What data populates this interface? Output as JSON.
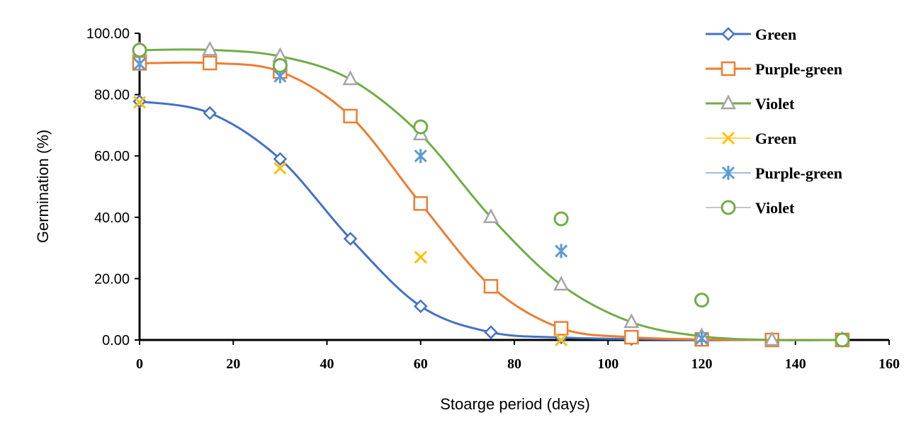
{
  "chart_data": {
    "type": "scatter",
    "xlabel": "Stoarge period (days)",
    "ylabel": "Germination (%)",
    "xlim": [
      0,
      160
    ],
    "ylim": [
      0,
      100
    ],
    "x_ticks": [
      0,
      20,
      40,
      60,
      80,
      100,
      120,
      140,
      160
    ],
    "y_ticks": [
      0,
      20,
      40,
      60,
      80,
      100
    ],
    "y_tick_labels": [
      "0.00",
      "20.00",
      "40.00",
      "60.00",
      "80.00",
      "100.00"
    ],
    "grid": false,
    "legend_position": "right",
    "series": [
      {
        "name": "Green",
        "kind": "line",
        "marker": "diamond",
        "color": "#4472C4",
        "x": [
          0,
          15,
          30,
          45,
          60,
          75,
          90,
          105,
          120,
          135,
          150
        ],
        "y": [
          77.8,
          74.0,
          59.0,
          33.0,
          11.0,
          2.5,
          0.8,
          0.3,
          0.1,
          0.0,
          0.0
        ]
      },
      {
        "name": "Purple-green",
        "kind": "line",
        "marker": "square",
        "color": "#ED7D31",
        "x": [
          0,
          15,
          30,
          45,
          60,
          75,
          90,
          105,
          120,
          135,
          150
        ],
        "y": [
          90.2,
          90.3,
          87.5,
          73.0,
          44.5,
          17.5,
          3.8,
          0.9,
          0.2,
          0.0,
          0.0
        ]
      },
      {
        "name": "Violet",
        "kind": "line",
        "marker": "triangle",
        "color": "#70AD47",
        "marker_color": "#A5A5A5",
        "x": [
          0,
          15,
          30,
          45,
          60,
          75,
          90,
          105,
          120,
          135,
          150
        ],
        "y": [
          94.5,
          94.6,
          92.5,
          85.0,
          67.0,
          40.0,
          18.0,
          5.8,
          1.2,
          0.0,
          0.0
        ]
      },
      {
        "name": "Green",
        "kind": "points",
        "marker": "x",
        "color": "#FFC000",
        "x": [
          0,
          30,
          60,
          90
        ],
        "y": [
          77.5,
          56.0,
          27.0,
          0.0
        ]
      },
      {
        "name": "Purple-green",
        "kind": "points",
        "marker": "asterisk",
        "color": "#5B9BD5",
        "x": [
          0,
          30,
          60,
          90,
          120
        ],
        "y": [
          90.0,
          86.0,
          60.0,
          29.0,
          0.5
        ]
      },
      {
        "name": "Violet",
        "kind": "points",
        "marker": "circle",
        "color": "#70AD47",
        "line_color": "#A5A5A5",
        "x": [
          0,
          30,
          60,
          90,
          120,
          150
        ],
        "y": [
          94.5,
          89.5,
          69.5,
          39.5,
          13.0,
          0.0
        ]
      }
    ]
  }
}
